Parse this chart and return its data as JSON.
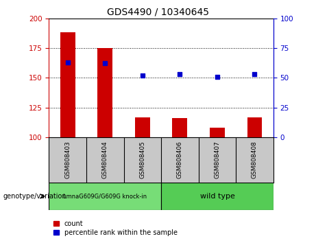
{
  "title": "GDS4490 / 10340645",
  "samples": [
    "GSM808403",
    "GSM808404",
    "GSM808405",
    "GSM808406",
    "GSM808407",
    "GSM808408"
  ],
  "count_values": [
    188,
    175,
    117,
    116,
    108,
    117
  ],
  "percentile_values": [
    63,
    62,
    52,
    53,
    51,
    53
  ],
  "ylim_left": [
    100,
    200
  ],
  "ylim_right": [
    0,
    100
  ],
  "yticks_left": [
    100,
    125,
    150,
    175,
    200
  ],
  "yticks_right": [
    0,
    25,
    50,
    75,
    100
  ],
  "bar_color": "#cc0000",
  "dot_color": "#0000cc",
  "bar_width": 0.4,
  "grid_lines": [
    125,
    150,
    175
  ],
  "groups": [
    {
      "label": "LmnaG609G/G609G knock-in",
      "n_samples": 3,
      "color": "#77dd77"
    },
    {
      "label": "wild type",
      "n_samples": 3,
      "color": "#55cc55"
    }
  ],
  "genotype_label": "genotype/variation",
  "legend_count": "count",
  "legend_percentile": "percentile rank within the sample",
  "background_color": "#ffffff",
  "plot_bg_color": "#ffffff",
  "tick_label_area_color": "#c8c8c8",
  "group_area_color": "#ffffff"
}
